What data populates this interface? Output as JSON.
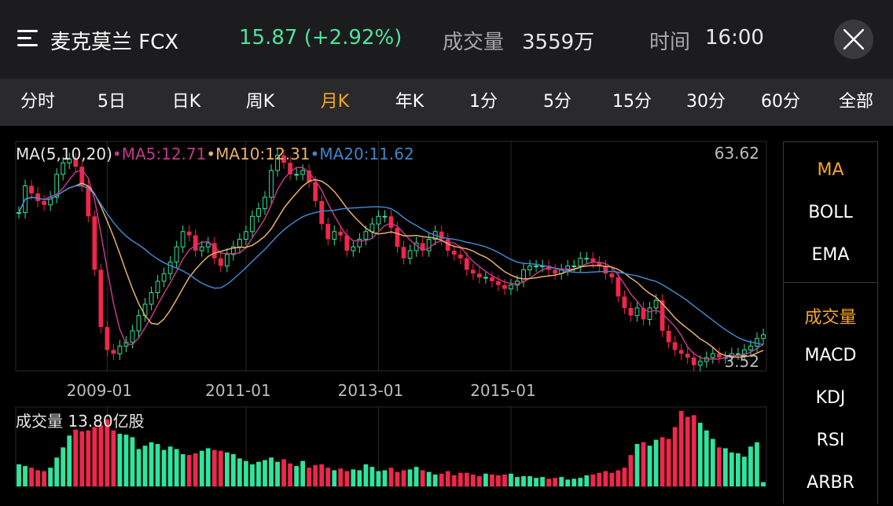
{
  "header": {
    "title": "麦克莫兰 FCX",
    "price": "15.87 (+2.92%)",
    "volume_label": "成交量",
    "volume_value": "3559万",
    "time_label": "时间",
    "time_value": "16:00",
    "price_color": "#4ee39a"
  },
  "tabs": [
    "分时",
    "5日",
    "日K",
    "周K",
    "月K",
    "年K",
    "1分",
    "5分",
    "15分",
    "30分",
    "60分",
    "全部"
  ],
  "active_tab": "月K",
  "side_indicators": [
    {
      "label": "MA",
      "active": true
    },
    {
      "label": "BOLL",
      "active": false
    },
    {
      "label": "EMA",
      "active": false
    },
    {
      "label": "成交量",
      "active": true
    },
    {
      "label": "MACD",
      "active": false
    },
    {
      "label": "KDJ",
      "active": false
    },
    {
      "label": "RSI",
      "active": false
    },
    {
      "label": "ARBR",
      "active": false
    }
  ],
  "chart_data": {
    "type": "candlestick",
    "ma_legend": {
      "prefix": "MA(5,10,20)",
      "ma5": "MA5:12.71",
      "ma10": "MA10:12.31",
      "ma20": "MA20:11.62"
    },
    "colors": {
      "ma5": "#c2398a",
      "ma10": "#e7b06b",
      "ma20": "#3f86c9",
      "up": "#2ee59d",
      "down": "#f0264b",
      "grid": "#2b2b2b",
      "axis_text": "#bdbdbd"
    },
    "y_max_label": "63.62",
    "y_min_label": "3.52",
    "ylim": [
      3.52,
      63.62
    ],
    "x_tick_labels": [
      "2009-01",
      "2011-01",
      "2013-01",
      "2015-01"
    ],
    "volume_label": "成交量  13.80亿股",
    "closes": [
      45,
      52,
      50,
      48,
      47,
      49,
      55,
      58,
      59,
      57,
      52,
      44,
      30,
      15,
      9,
      8,
      10,
      11,
      14,
      18,
      21,
      24,
      27,
      29,
      32,
      36,
      40,
      39,
      35,
      36,
      37,
      33,
      31,
      34,
      36,
      38,
      40,
      44,
      46,
      49,
      56,
      60,
      58,
      55,
      55,
      56,
      53,
      48,
      42,
      38,
      40,
      39,
      35,
      36,
      38,
      40,
      42,
      44,
      44,
      41,
      36,
      33,
      35,
      37,
      35,
      38,
      40,
      38,
      35,
      34,
      33,
      30,
      29,
      28,
      28,
      27,
      26,
      25,
      26,
      27,
      30,
      31,
      31,
      31,
      30,
      29,
      30,
      31,
      31,
      33,
      33,
      32,
      31,
      29,
      28,
      23,
      20,
      18,
      20,
      17,
      20,
      22,
      14,
      11,
      9,
      8,
      7,
      5,
      6,
      7,
      8,
      7,
      7,
      8,
      8,
      9,
      10,
      12,
      13
    ],
    "volumes": [
      26,
      24,
      22,
      19,
      18,
      22,
      34,
      46,
      60,
      67,
      65,
      66,
      70,
      72,
      79,
      66,
      62,
      61,
      58,
      44,
      48,
      52,
      50,
      43,
      47,
      44,
      38,
      37,
      39,
      42,
      45,
      43,
      42,
      40,
      38,
      33,
      30,
      26,
      29,
      31,
      34,
      29,
      32,
      27,
      24,
      30,
      22,
      25,
      26,
      22,
      19,
      21,
      18,
      20,
      19,
      26,
      23,
      18,
      19,
      22,
      17,
      19,
      20,
      23,
      19,
      17,
      14,
      15,
      18,
      13,
      16,
      16,
      14,
      12,
      15,
      14,
      13,
      14,
      15,
      11,
      12,
      12,
      10,
      11,
      9,
      10,
      11,
      8,
      9,
      10,
      13,
      14,
      16,
      18,
      16,
      19,
      22,
      37,
      50,
      52,
      48,
      55,
      58,
      56,
      70,
      89,
      82,
      84,
      75,
      66,
      56,
      46,
      45,
      40,
      39,
      35,
      47,
      52,
      5
    ]
  }
}
